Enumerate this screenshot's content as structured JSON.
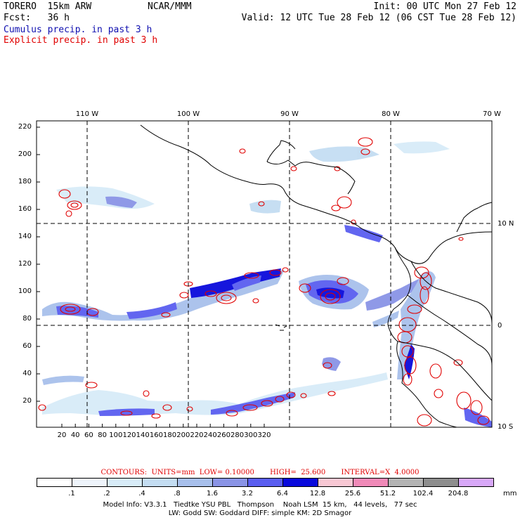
{
  "header": {
    "model": "TORERO  15km ARW",
    "org": "NCAR/MMM",
    "init": "Init: 00 UTC Mon 27 Feb 12",
    "fcst": "Fcst:   36 h",
    "valid": "Valid: 12 UTC Tue 28 Feb 12 (06 CST Tue 28 Feb 12)",
    "field1": "Cumulus precip. in past 3 h",
    "field2": "Explicit precip. in past 3 h"
  },
  "colors": {
    "cumulus_label": "#1010b0",
    "explicit_label": "#e00000",
    "contour": "#e00000"
  },
  "axes": {
    "top_lon": [
      "110 W",
      "100 W",
      "90 W",
      "80 W",
      "70 W"
    ],
    "right_lat": [
      "10 N",
      "0",
      "10 S"
    ],
    "left_y": [
      "220",
      "200",
      "180",
      "160",
      "140",
      "120",
      "100",
      "80",
      "60",
      "40",
      "20"
    ],
    "bottom_x": [
      "20",
      "40",
      "60",
      "80",
      "100",
      "120",
      "140",
      "160",
      "180",
      "200",
      "220",
      "240",
      "260",
      "280",
      "300",
      "320"
    ]
  },
  "contour_text": "CONTOURS:  UNITS=mm  LOW= 0.10000       HIGH=  25.600       INTERVAL=X  4.0000",
  "legend": {
    "labels": [
      ".1",
      ".2",
      ".4",
      ".8",
      "1.6",
      "3.2",
      "6.4",
      "12.8",
      "25.6",
      "51.2",
      "102.4",
      "204.8"
    ],
    "unit": "mm",
    "colors": [
      "#ffffff",
      "#eef4fb",
      "#d8ecf8",
      "#c4ddf2",
      "#a8c0ec",
      "#8a94e6",
      "#5a5ef0",
      "#0a0adc",
      "#f8c8d4",
      "#f08ab8",
      "#b4b4b4",
      "#8e8e8e",
      "#d8a8f8"
    ]
  },
  "footer": {
    "line1": "Model Info: V3.3.1   Tiedtke YSU PBL   Thompson    Noah LSM  15 km,   44 levels,   77 sec",
    "line2": "LW: Godd SW: Goddard DIFF: simple KM: 2D Smagor"
  }
}
